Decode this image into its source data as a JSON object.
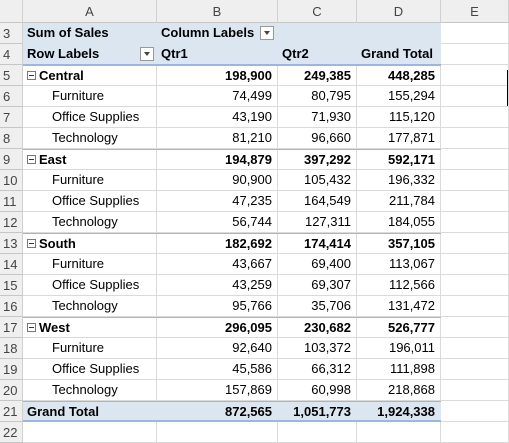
{
  "column_headers": [
    "A",
    "B",
    "C",
    "D",
    "E"
  ],
  "row_numbers": [
    3,
    4,
    5,
    6,
    7,
    8,
    9,
    10,
    11,
    12,
    13,
    14,
    15,
    16,
    17,
    18,
    19,
    20,
    21,
    22
  ],
  "pivot": {
    "value_field": "Sum of Sales",
    "column_labels": "Column Labels",
    "row_labels": "Row Labels",
    "columns": [
      "Qtr1",
      "Qtr2",
      "Grand Total"
    ],
    "groups": [
      {
        "name": "Central",
        "totals": [
          "198,900",
          "249,385",
          "448,285"
        ],
        "items": [
          {
            "name": "Furniture",
            "values": [
              "74,499",
              "80,795",
              "155,294"
            ]
          },
          {
            "name": "Office Supplies",
            "values": [
              "43,190",
              "71,930",
              "115,120"
            ]
          },
          {
            "name": "Technology",
            "values": [
              "81,210",
              "96,660",
              "177,871"
            ]
          }
        ]
      },
      {
        "name": "East",
        "totals": [
          "194,879",
          "397,292",
          "592,171"
        ],
        "items": [
          {
            "name": "Furniture",
            "values": [
              "90,900",
              "105,432",
              "196,332"
            ]
          },
          {
            "name": "Office Supplies",
            "values": [
              "47,235",
              "164,549",
              "211,784"
            ]
          },
          {
            "name": "Technology",
            "values": [
              "56,744",
              "127,311",
              "184,055"
            ]
          }
        ]
      },
      {
        "name": "South",
        "totals": [
          "182,692",
          "174,414",
          "357,105"
        ],
        "items": [
          {
            "name": "Furniture",
            "values": [
              "43,667",
              "69,400",
              "113,067"
            ]
          },
          {
            "name": "Office Supplies",
            "values": [
              "43,259",
              "69,307",
              "112,566"
            ]
          },
          {
            "name": "Technology",
            "values": [
              "95,766",
              "35,706",
              "131,472"
            ]
          }
        ]
      },
      {
        "name": "West",
        "totals": [
          "296,095",
          "230,682",
          "526,777"
        ],
        "items": [
          {
            "name": "Furniture",
            "values": [
              "92,640",
              "103,372",
              "196,011"
            ]
          },
          {
            "name": "Office Supplies",
            "values": [
              "45,586",
              "66,312",
              "111,898"
            ]
          },
          {
            "name": "Technology",
            "values": [
              "157,869",
              "60,998",
              "218,868"
            ]
          }
        ]
      }
    ],
    "grand_total": {
      "label": "Grand Total",
      "values": [
        "872,565",
        "1,051,773",
        "1,924,338"
      ]
    }
  }
}
